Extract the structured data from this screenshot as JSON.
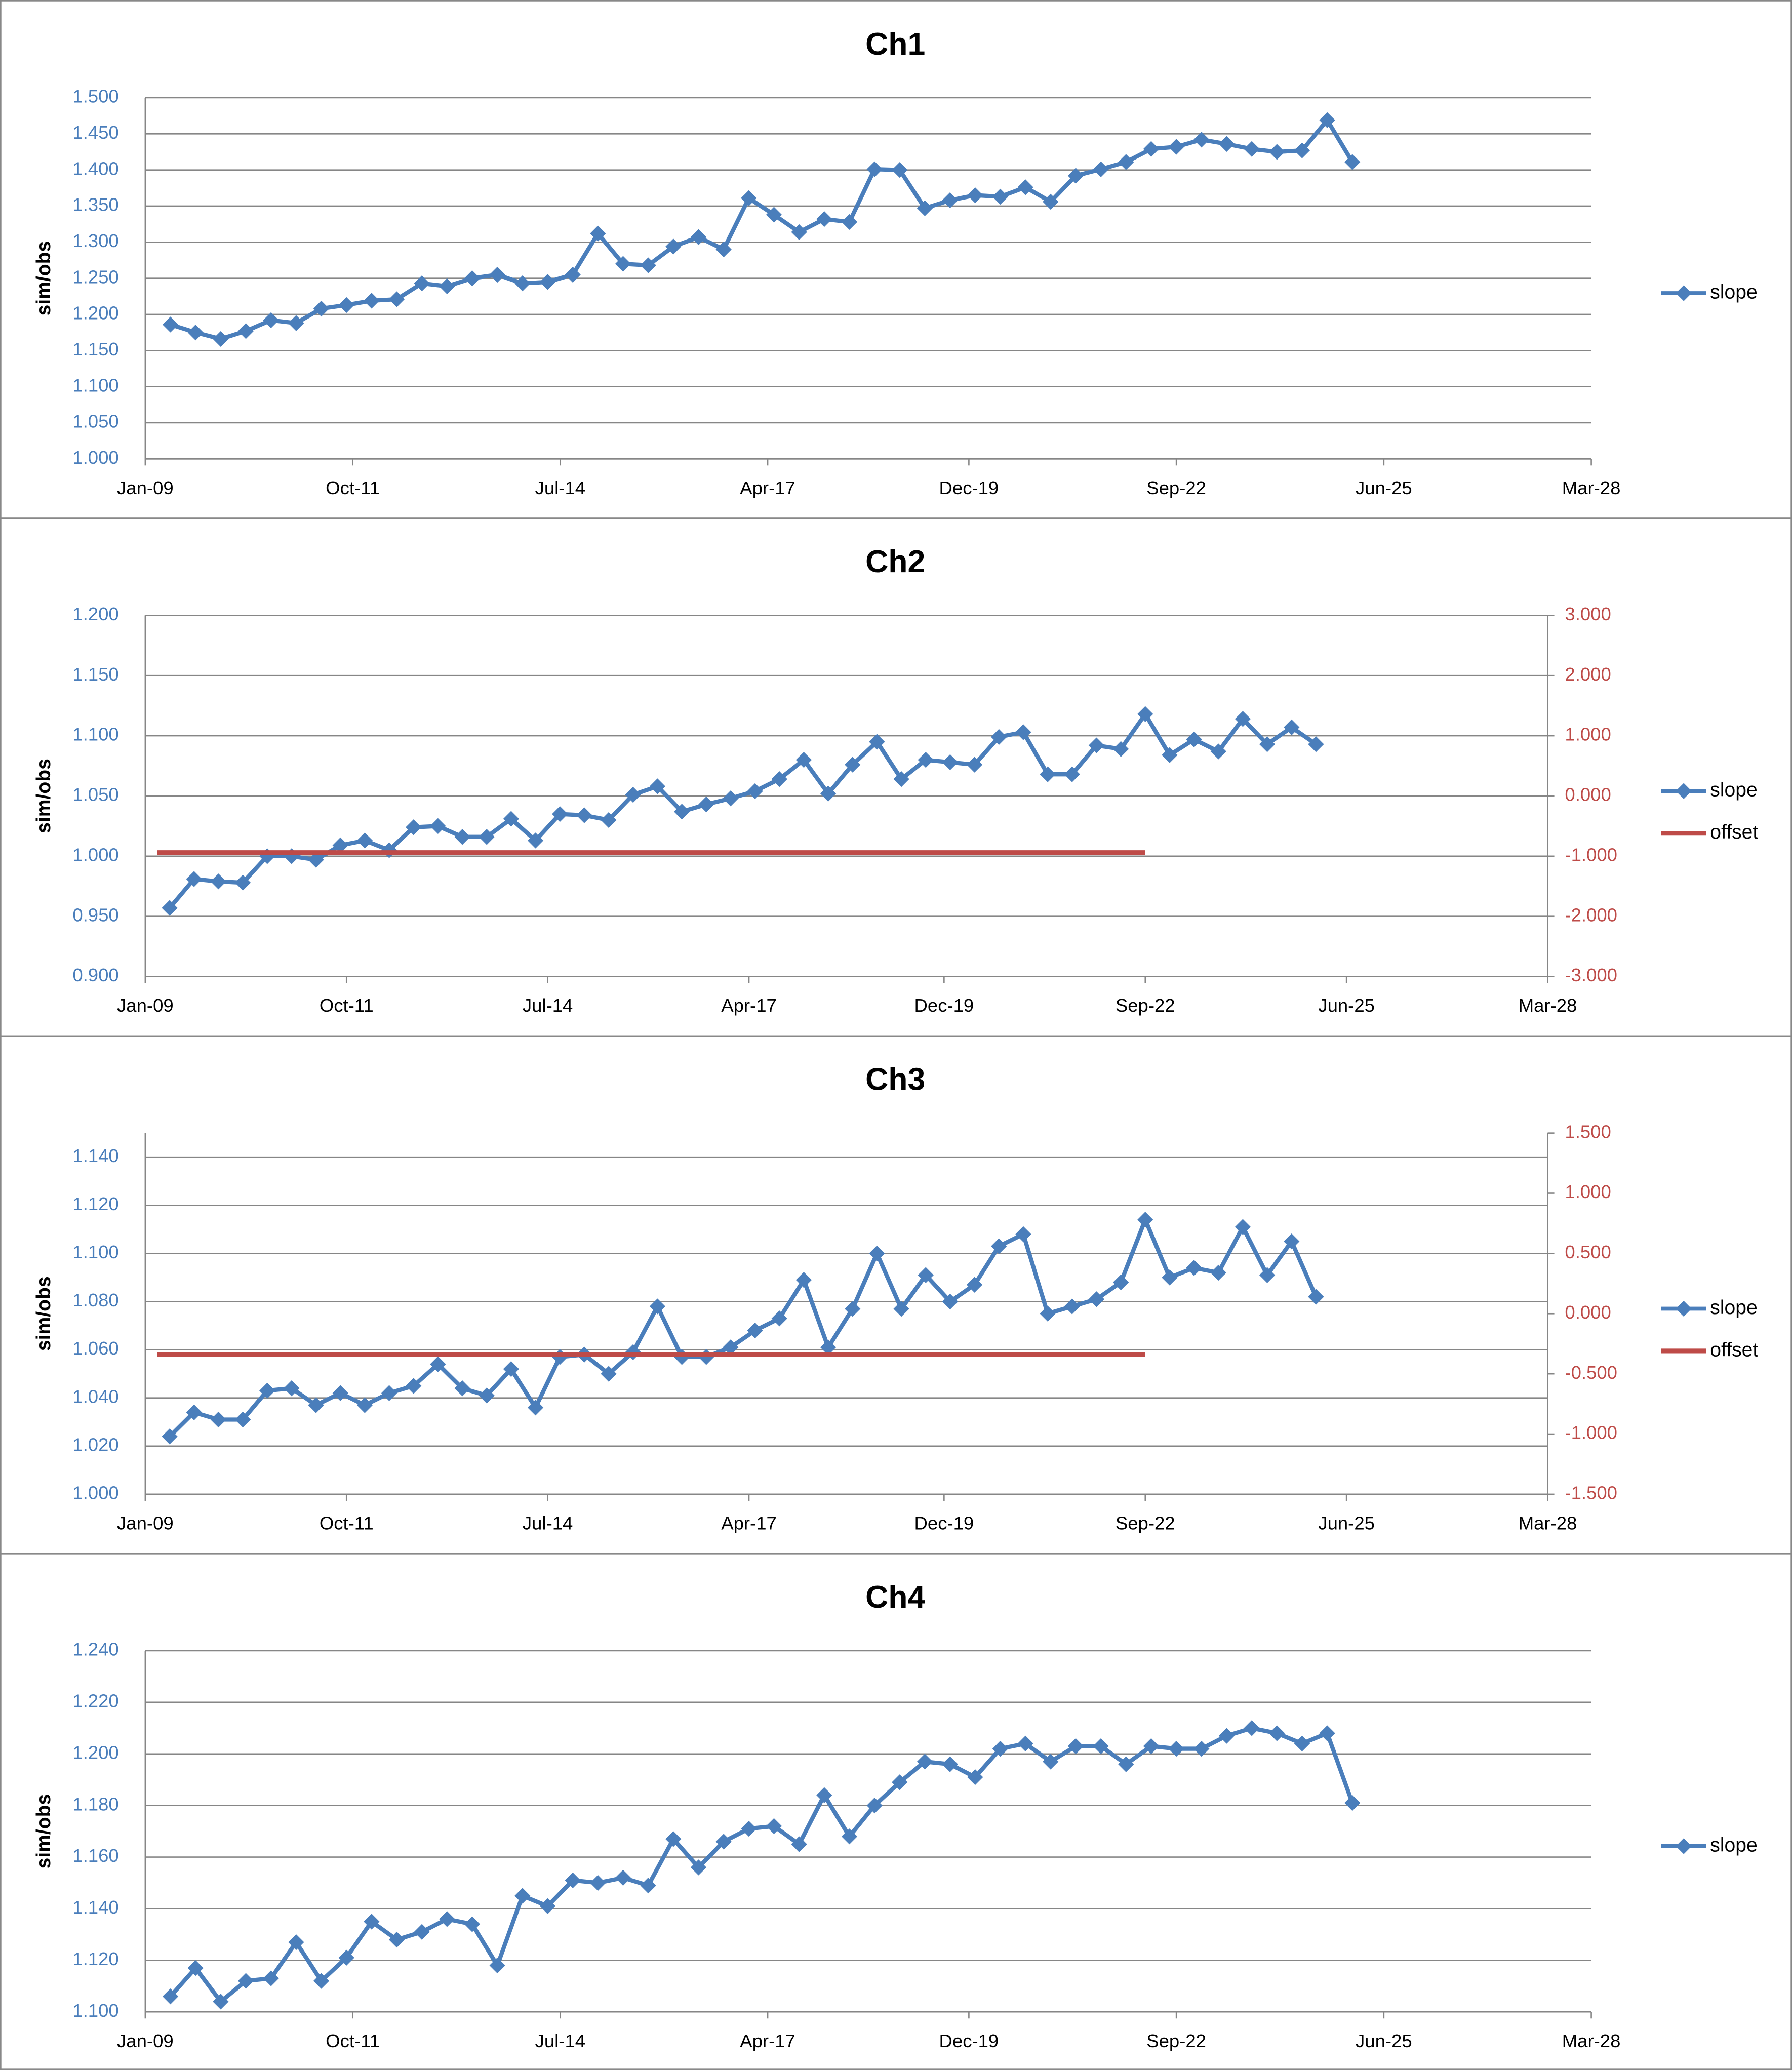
{
  "chart_data": [
    {
      "type": "line",
      "title": "Ch1",
      "y_label": "sim/obs",
      "grid": true,
      "legend": "right",
      "x": [
        "2009-05",
        "2009-09",
        "2010-01",
        "2010-05",
        "2010-09",
        "2011-01",
        "2011-05",
        "2011-09",
        "2012-01",
        "2012-05",
        "2012-09",
        "2013-01",
        "2013-05",
        "2013-09",
        "2014-01",
        "2014-05",
        "2014-09",
        "2015-01",
        "2015-05",
        "2015-09",
        "2016-01",
        "2016-05",
        "2016-09",
        "2017-01",
        "2017-05",
        "2017-09",
        "2018-01",
        "2018-05",
        "2018-09",
        "2019-01",
        "2019-05",
        "2019-09",
        "2020-01",
        "2020-05",
        "2020-09",
        "2021-01",
        "2021-05",
        "2021-09",
        "2022-01",
        "2022-05",
        "2022-09",
        "2023-01",
        "2023-05",
        "2023-09",
        "2024-01",
        "2024-05",
        "2024-09",
        "2025-01"
      ],
      "xlim": [
        "2009-01",
        "2028-03"
      ],
      "xticks": [
        {
          "value": "2009-01",
          "label": "Jan-09"
        },
        {
          "value": "2011-10",
          "label": "Oct-11"
        },
        {
          "value": "2014-07",
          "label": "Jul-14"
        },
        {
          "value": "2017-04",
          "label": "Apr-17"
        },
        {
          "value": "2019-12",
          "label": "Dec-19"
        },
        {
          "value": "2022-09",
          "label": "Sep-22"
        },
        {
          "value": "2025-06",
          "label": "Jun-25"
        },
        {
          "value": "2028-03",
          "label": "Mar-28"
        }
      ],
      "ylim": [
        1.0,
        1.5
      ],
      "yticks": [
        {
          "value": 1.0,
          "label": "1.000"
        },
        {
          "value": 1.05,
          "label": "1.050"
        },
        {
          "value": 1.1,
          "label": "1.100"
        },
        {
          "value": 1.15,
          "label": "1.150"
        },
        {
          "value": 1.2,
          "label": "1.200"
        },
        {
          "value": 1.25,
          "label": "1.250"
        },
        {
          "value": 1.3,
          "label": "1.300"
        },
        {
          "value": 1.35,
          "label": "1.350"
        },
        {
          "value": 1.4,
          "label": "1.400"
        },
        {
          "value": 1.45,
          "label": "1.450"
        },
        {
          "value": 1.5,
          "label": "1.500"
        }
      ],
      "series": [
        {
          "name": "slope",
          "color": "#4a7ebb",
          "marker": "diamond",
          "values": [
            1.186,
            1.175,
            1.166,
            1.177,
            1.192,
            1.188,
            1.208,
            1.213,
            1.219,
            1.221,
            1.243,
            1.239,
            1.25,
            1.255,
            1.243,
            1.245,
            1.255,
            1.312,
            1.27,
            1.268,
            1.294,
            1.307,
            1.29,
            1.361,
            1.338,
            1.314,
            1.332,
            1.328,
            1.401,
            1.4,
            1.347,
            1.358,
            1.365,
            1.363,
            1.376,
            1.356,
            1.392,
            1.401,
            1.411,
            1.429,
            1.432,
            1.442,
            1.436,
            1.429,
            1.425,
            1.427,
            1.469,
            1.411
          ]
        }
      ]
    },
    {
      "type": "line",
      "title": "Ch2",
      "y_label": "sim/obs",
      "grid": true,
      "legend": "right",
      "x": [
        "2009-05",
        "2009-09",
        "2010-01",
        "2010-05",
        "2010-09",
        "2011-01",
        "2011-05",
        "2011-09",
        "2012-01",
        "2012-05",
        "2012-09",
        "2013-01",
        "2013-05",
        "2013-09",
        "2014-01",
        "2014-05",
        "2014-09",
        "2015-01",
        "2015-05",
        "2015-09",
        "2016-01",
        "2016-05",
        "2016-09",
        "2017-01",
        "2017-05",
        "2017-09",
        "2018-01",
        "2018-05",
        "2018-09",
        "2019-01",
        "2019-05",
        "2019-09",
        "2020-01",
        "2020-05",
        "2020-09",
        "2021-01",
        "2021-05",
        "2021-09",
        "2022-01",
        "2022-05",
        "2022-09",
        "2023-01",
        "2023-05",
        "2023-09",
        "2024-01",
        "2024-05",
        "2024-09",
        "2025-01"
      ],
      "xlim": [
        "2009-01",
        "2028-03"
      ],
      "xticks": [
        {
          "value": "2009-01",
          "label": "Jan-09"
        },
        {
          "value": "2011-10",
          "label": "Oct-11"
        },
        {
          "value": "2014-07",
          "label": "Jul-14"
        },
        {
          "value": "2017-04",
          "label": "Apr-17"
        },
        {
          "value": "2019-12",
          "label": "Dec-19"
        },
        {
          "value": "2022-09",
          "label": "Sep-22"
        },
        {
          "value": "2025-06",
          "label": "Jun-25"
        },
        {
          "value": "2028-03",
          "label": "Mar-28"
        }
      ],
      "ylim": [
        0.9,
        1.2
      ],
      "yticks": [
        {
          "value": 0.9,
          "label": "0.900"
        },
        {
          "value": 0.95,
          "label": "0.950"
        },
        {
          "value": 1.0,
          "label": "1.000"
        },
        {
          "value": 1.05,
          "label": "1.050"
        },
        {
          "value": 1.1,
          "label": "1.100"
        },
        {
          "value": 1.15,
          "label": "1.150"
        },
        {
          "value": 1.2,
          "label": "1.200"
        }
      ],
      "y2lim": [
        -3,
        3
      ],
      "y2ticks": [
        {
          "value": -3,
          "label": "-3.000"
        },
        {
          "value": -2,
          "label": "-2.000"
        },
        {
          "value": -1,
          "label": "-1.000"
        },
        {
          "value": 0,
          "label": "0.000"
        },
        {
          "value": 1,
          "label": "1.000"
        },
        {
          "value": 2,
          "label": "2.000"
        },
        {
          "value": 3,
          "label": "3.000"
        }
      ],
      "series": [
        {
          "name": "slope",
          "color": "#4a7ebb",
          "marker": "diamond",
          "values": [
            0.957,
            0.981,
            0.979,
            0.978,
            1.0,
            1.0,
            0.997,
            1.009,
            1.013,
            1.005,
            1.024,
            1.025,
            1.016,
            1.016,
            1.031,
            1.013,
            1.035,
            1.034,
            1.03,
            1.051,
            1.058,
            1.037,
            1.043,
            1.048,
            1.054,
            1.064,
            1.08,
            1.052,
            1.076,
            1.095,
            1.064,
            1.08,
            1.078,
            1.076,
            1.099,
            1.103,
            1.068,
            1.068,
            1.092,
            1.089,
            1.118,
            1.084,
            1.097,
            1.087,
            1.114,
            1.093,
            1.107,
            1.093
          ]
        },
        {
          "name": "offset",
          "color": "#be4b48",
          "axis": "y2",
          "x": [
            "2009-03",
            "2022-09"
          ],
          "values": [
            -0.94,
            -0.94
          ]
        }
      ]
    },
    {
      "type": "line",
      "title": "Ch3",
      "y_label": "sim/obs",
      "grid": true,
      "legend": "right",
      "x": [
        "2009-05",
        "2009-09",
        "2010-01",
        "2010-05",
        "2010-09",
        "2011-01",
        "2011-05",
        "2011-09",
        "2012-01",
        "2012-05",
        "2012-09",
        "2013-01",
        "2013-05",
        "2013-09",
        "2014-01",
        "2014-05",
        "2014-09",
        "2015-01",
        "2015-05",
        "2015-09",
        "2016-01",
        "2016-05",
        "2016-09",
        "2017-01",
        "2017-05",
        "2017-09",
        "2018-01",
        "2018-05",
        "2018-09",
        "2019-01",
        "2019-05",
        "2019-09",
        "2020-01",
        "2020-05",
        "2020-09",
        "2021-01",
        "2021-05",
        "2021-09",
        "2022-01",
        "2022-05",
        "2022-09",
        "2023-01",
        "2023-05",
        "2023-09",
        "2024-01",
        "2024-05",
        "2024-09",
        "2025-01"
      ],
      "xlim": [
        "2009-01",
        "2028-03"
      ],
      "xticks": [
        {
          "value": "2009-01",
          "label": "Jan-09"
        },
        {
          "value": "2011-10",
          "label": "Oct-11"
        },
        {
          "value": "2014-07",
          "label": "Jul-14"
        },
        {
          "value": "2017-04",
          "label": "Apr-17"
        },
        {
          "value": "2019-12",
          "label": "Dec-19"
        },
        {
          "value": "2022-09",
          "label": "Sep-22"
        },
        {
          "value": "2025-06",
          "label": "Jun-25"
        },
        {
          "value": "2028-03",
          "label": "Mar-28"
        }
      ],
      "ylim": [
        1.0,
        1.15
      ],
      "yticks": [
        {
          "value": 1.0,
          "label": "1.000"
        },
        {
          "value": 1.02,
          "label": "1.020"
        },
        {
          "value": 1.04,
          "label": "1.040"
        },
        {
          "value": 1.06,
          "label": "1.060"
        },
        {
          "value": 1.08,
          "label": "1.080"
        },
        {
          "value": 1.1,
          "label": "1.100"
        },
        {
          "value": 1.12,
          "label": "1.120"
        },
        {
          "value": 1.14,
          "label": "1.140"
        }
      ],
      "y2lim": [
        -1.5,
        1.5
      ],
      "y2ticks": [
        {
          "value": -1.5,
          "label": "-1.500"
        },
        {
          "value": -1,
          "label": "-1.000"
        },
        {
          "value": -0.5,
          "label": "-0.500"
        },
        {
          "value": 0,
          "label": "0.000"
        },
        {
          "value": 0.5,
          "label": "0.500"
        },
        {
          "value": 1,
          "label": "1.000"
        },
        {
          "value": 1.5,
          "label": "1.500"
        }
      ],
      "series": [
        {
          "name": "slope",
          "color": "#4a7ebb",
          "marker": "diamond",
          "values": [
            1.024,
            1.034,
            1.031,
            1.031,
            1.043,
            1.044,
            1.037,
            1.042,
            1.037,
            1.042,
            1.045,
            1.054,
            1.044,
            1.041,
            1.052,
            1.036,
            1.057,
            1.058,
            1.05,
            1.059,
            1.078,
            1.057,
            1.057,
            1.061,
            1.068,
            1.073,
            1.089,
            1.061,
            1.077,
            1.1,
            1.077,
            1.091,
            1.08,
            1.087,
            1.103,
            1.108,
            1.075,
            1.078,
            1.081,
            1.088,
            1.114,
            1.09,
            1.094,
            1.092,
            1.111,
            1.091,
            1.105,
            1.082
          ]
        },
        {
          "name": "offset",
          "color": "#be4b48",
          "axis": "y2",
          "x": [
            "2009-03",
            "2022-09"
          ],
          "values": [
            -0.34,
            -0.34
          ]
        }
      ]
    },
    {
      "type": "line",
      "title": "Ch4",
      "y_label": "sim/obs",
      "grid": true,
      "legend": "right",
      "x": [
        "2009-05",
        "2009-09",
        "2010-01",
        "2010-05",
        "2010-09",
        "2011-01",
        "2011-05",
        "2011-09",
        "2012-01",
        "2012-05",
        "2012-09",
        "2013-01",
        "2013-05",
        "2013-09",
        "2014-01",
        "2014-05",
        "2014-09",
        "2015-01",
        "2015-05",
        "2015-09",
        "2016-01",
        "2016-05",
        "2016-09",
        "2017-01",
        "2017-05",
        "2017-09",
        "2018-01",
        "2018-05",
        "2018-09",
        "2019-01",
        "2019-05",
        "2019-09",
        "2020-01",
        "2020-05",
        "2020-09",
        "2021-01",
        "2021-05",
        "2021-09",
        "2022-01",
        "2022-05",
        "2022-09",
        "2023-01",
        "2023-05",
        "2023-09",
        "2024-01",
        "2024-05",
        "2024-09",
        "2025-01"
      ],
      "xlim": [
        "2009-01",
        "2028-03"
      ],
      "xticks": [
        {
          "value": "2009-01",
          "label": "Jan-09"
        },
        {
          "value": "2011-10",
          "label": "Oct-11"
        },
        {
          "value": "2014-07",
          "label": "Jul-14"
        },
        {
          "value": "2017-04",
          "label": "Apr-17"
        },
        {
          "value": "2019-12",
          "label": "Dec-19"
        },
        {
          "value": "2022-09",
          "label": "Sep-22"
        },
        {
          "value": "2025-06",
          "label": "Jun-25"
        },
        {
          "value": "2028-03",
          "label": "Mar-28"
        }
      ],
      "ylim": [
        1.1,
        1.24
      ],
      "yticks": [
        {
          "value": 1.1,
          "label": "1.100"
        },
        {
          "value": 1.12,
          "label": "1.120"
        },
        {
          "value": 1.14,
          "label": "1.140"
        },
        {
          "value": 1.16,
          "label": "1.160"
        },
        {
          "value": 1.18,
          "label": "1.180"
        },
        {
          "value": 1.2,
          "label": "1.200"
        },
        {
          "value": 1.22,
          "label": "1.220"
        },
        {
          "value": 1.24,
          "label": "1.240"
        }
      ],
      "series": [
        {
          "name": "slope",
          "color": "#4a7ebb",
          "marker": "diamond",
          "values": [
            1.106,
            1.117,
            1.104,
            1.112,
            1.113,
            1.127,
            1.112,
            1.121,
            1.135,
            1.128,
            1.131,
            1.136,
            1.134,
            1.118,
            1.145,
            1.141,
            1.151,
            1.15,
            1.152,
            1.149,
            1.167,
            1.156,
            1.166,
            1.171,
            1.172,
            1.165,
            1.184,
            1.168,
            1.18,
            1.189,
            1.197,
            1.196,
            1.191,
            1.202,
            1.204,
            1.197,
            1.203,
            1.203,
            1.196,
            1.203,
            1.202,
            1.202,
            1.207,
            1.21,
            1.208,
            1.204,
            1.208,
            1.181
          ]
        }
      ]
    }
  ]
}
